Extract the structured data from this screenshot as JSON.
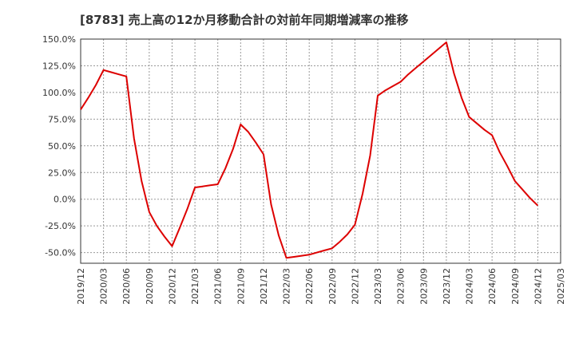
{
  "chart_data": {
    "type": "line",
    "title": "[8783]  売上高の12か月移動合計の対前年同期増減率の推移",
    "xlabel": "",
    "ylabel": "",
    "ylim": [
      -60,
      150
    ],
    "y_ticks": [
      150,
      125,
      100,
      75,
      50,
      25,
      0,
      -25,
      -50
    ],
    "y_tick_labels": [
      "150.0%",
      "125.0%",
      "100.0%",
      "75.0%",
      "50.0%",
      "25.0%",
      "0.0%",
      "-25.0%",
      "-50.0%"
    ],
    "x_tick_labels": [
      "2019/12",
      "2020/03",
      "2020/06",
      "2020/09",
      "2020/12",
      "2021/03",
      "2021/06",
      "2021/09",
      "2021/12",
      "2022/03",
      "2022/06",
      "2022/09",
      "2022/12",
      "2023/03",
      "2023/06",
      "2023/09",
      "2023/12",
      "2024/03",
      "2024/06",
      "2024/09",
      "2024/12",
      "2025/03"
    ],
    "grid": true,
    "legend": "none",
    "series": [
      {
        "name": "増減率",
        "color": "#dd0000",
        "x": [
          "2019/12",
          "2020/01",
          "2020/02",
          "2020/03",
          "2020/04",
          "2020/05",
          "2020/06",
          "2020/07",
          "2020/08",
          "2020/09",
          "2020/10",
          "2020/11",
          "2020/12",
          "2021/01",
          "2021/02",
          "2021/03",
          "2021/04",
          "2021/05",
          "2021/06",
          "2021/07",
          "2021/08",
          "2021/09",
          "2021/10",
          "2021/11",
          "2021/12",
          "2022/01",
          "2022/02",
          "2022/03",
          "2022/04",
          "2022/05",
          "2022/06",
          "2022/07",
          "2022/08",
          "2022/09",
          "2022/10",
          "2022/11",
          "2022/12",
          "2023/01",
          "2023/02",
          "2023/03",
          "2023/04",
          "2023/05",
          "2023/06",
          "2023/07",
          "2023/08",
          "2023/09",
          "2023/10",
          "2023/11",
          "2023/12",
          "2024/01",
          "2024/02",
          "2024/03",
          "2024/04",
          "2024/05",
          "2024/06",
          "2024/07",
          "2024/08",
          "2024/09",
          "2024/10",
          "2024/11",
          "2024/12"
        ],
        "values": [
          84,
          95,
          107,
          121,
          119,
          117,
          115,
          57,
          17,
          -12,
          -25,
          -35,
          -44,
          -27,
          -9,
          11,
          12,
          13,
          14,
          29,
          47,
          70,
          63,
          53,
          42,
          -5,
          -34,
          -55,
          -54,
          -53,
          -52,
          -50,
          -48,
          -46,
          -40,
          -33,
          -24,
          5,
          41,
          97,
          102,
          106,
          110,
          117,
          123,
          129,
          135,
          141,
          147,
          118,
          95,
          77,
          71,
          65,
          60,
          44,
          31,
          17,
          9,
          1,
          -6
        ]
      }
    ]
  }
}
